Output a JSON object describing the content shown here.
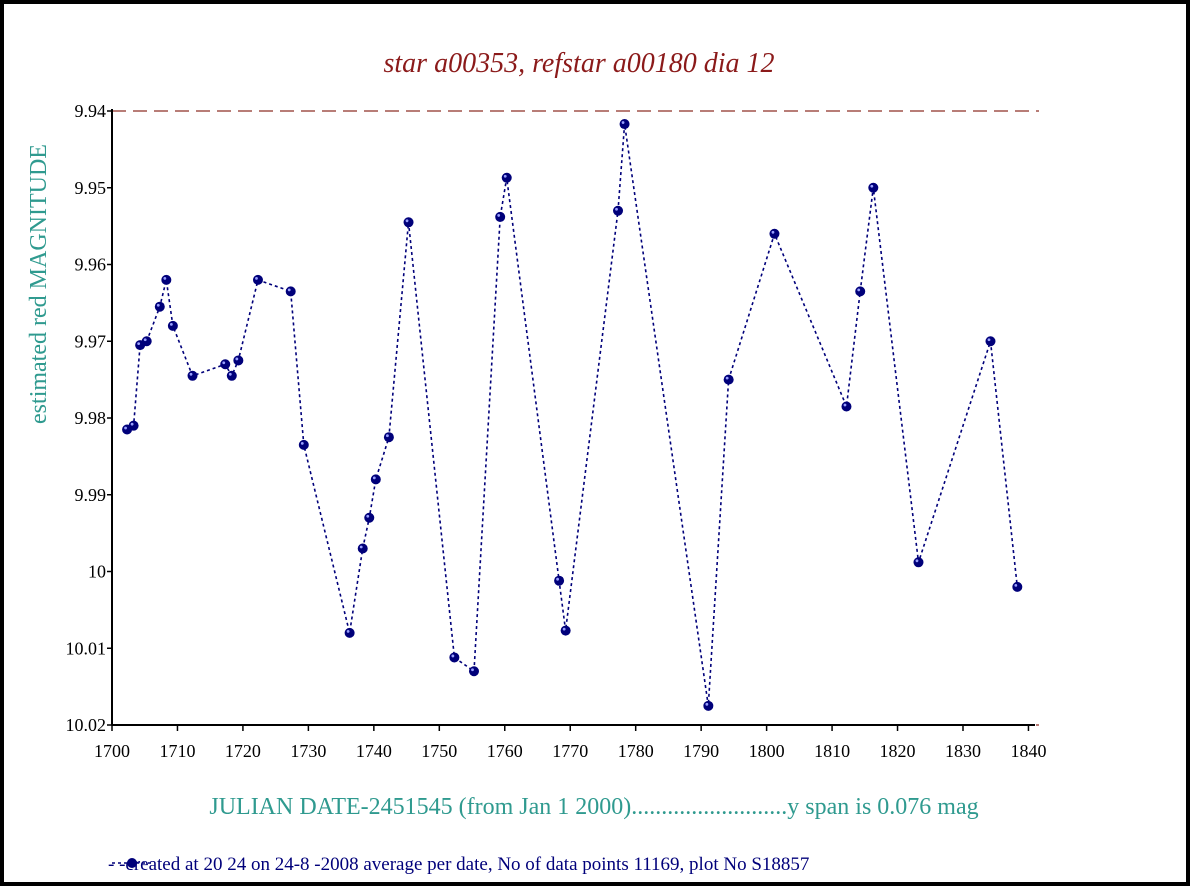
{
  "chart_data": {
    "type": "line",
    "title": "star a00353, refstar a00180  dia  12",
    "xlabel": "JULIAN DATE-2451545 (from Jan 1 2000)..........................y span is 0.076 mag",
    "ylabel": "estimated red MAGNITUDE",
    "footer": "- -created at 20 24 on 24-8 -2008 average per date, No of data points 11169,  plot No S18857",
    "x_ticks": [
      "1700",
      "1710",
      "1720",
      "1730",
      "1740",
      "1750",
      "1760",
      "1770",
      "1780",
      "1790",
      "1800",
      "1810",
      "1820",
      "1830",
      "1840"
    ],
    "y_ticks": [
      "9.94",
      "9.95",
      "9.96",
      "9.97",
      "9.98",
      "9.99",
      "10",
      "10.01",
      "10.02"
    ],
    "xlim": [
      1700,
      1841
    ],
    "ylim": [
      9.94,
      10.02
    ],
    "y_inverted": true,
    "reference_lines": [
      9.94,
      10.02
    ],
    "series": [
      {
        "x": [
          1702.3,
          1703.3,
          1704.3,
          1705.3,
          1707.3,
          1708.3,
          1709.3,
          1712.3,
          1717.3,
          1718.3,
          1719.3,
          1722.3,
          1727.3,
          1729.3,
          1736.3,
          1738.3,
          1739.3,
          1740.3,
          1742.3,
          1745.3,
          1752.3,
          1755.3,
          1759.3,
          1760.3,
          1768.3,
          1769.3,
          1777.3,
          1778.3,
          1791.1,
          1794.2,
          1801.2,
          1812.2,
          1814.3,
          1816.3,
          1823.2,
          1834.2,
          1838.3
        ],
        "y": [
          9.9815,
          9.981,
          9.9705,
          9.97,
          9.9655,
          9.962,
          9.968,
          9.9745,
          9.973,
          9.9745,
          9.9725,
          9.962,
          9.9635,
          9.9835,
          10.008,
          9.997,
          9.993,
          9.988,
          9.9825,
          9.9545,
          10.0112,
          10.013,
          9.9538,
          9.9487,
          10.0012,
          10.0077,
          9.953,
          9.9417,
          10.0175,
          9.975,
          9.956,
          9.9785,
          9.9635,
          9.95,
          9.9988,
          9.97,
          10.002
        ]
      }
    ],
    "colors": {
      "title": "#8b1a1a",
      "axis_label": "#2f9a8f",
      "series": "#00007a",
      "reference_line": "#a0524a",
      "footer": "#00007a",
      "axis": "#000000"
    }
  }
}
